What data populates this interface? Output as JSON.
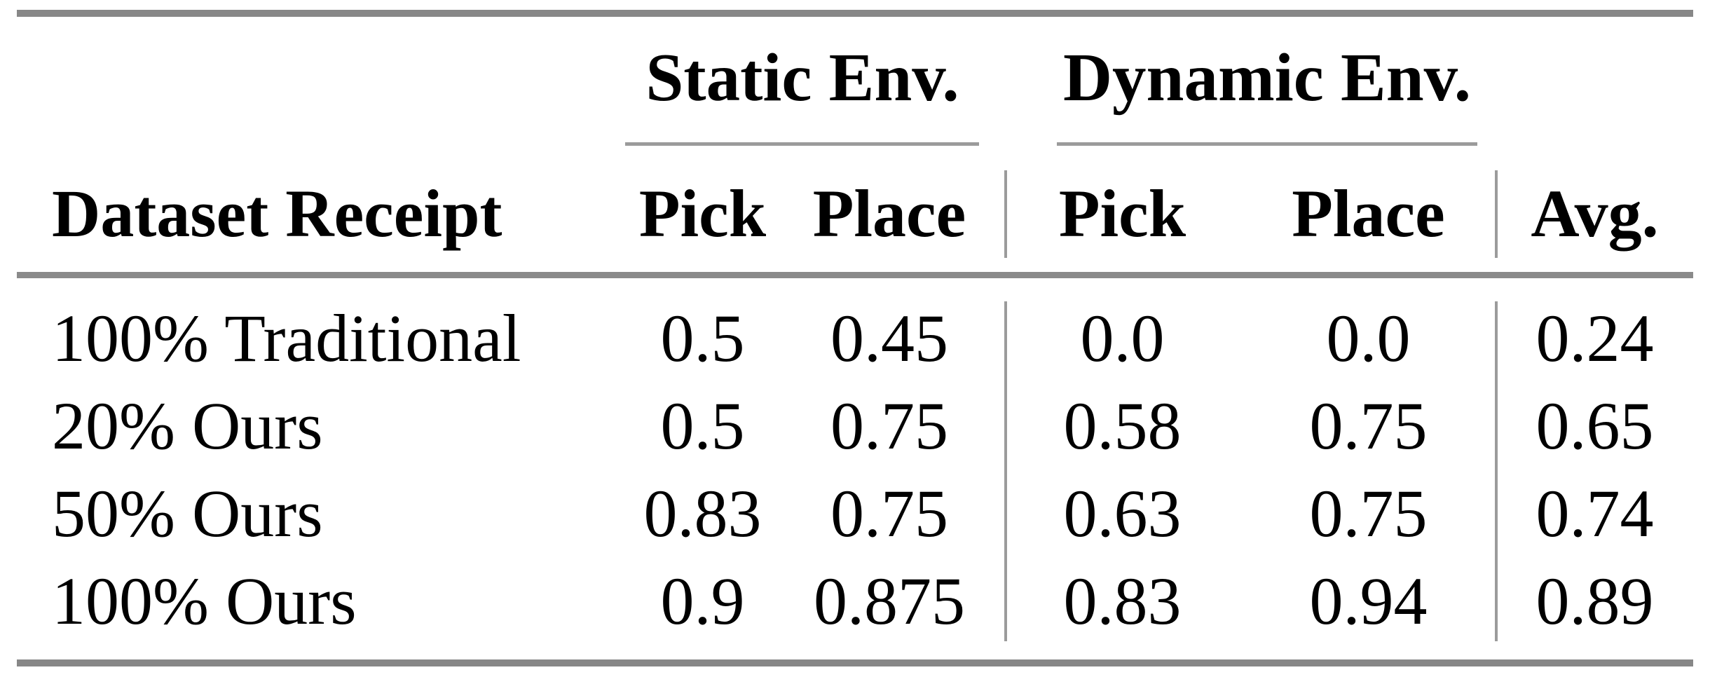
{
  "table": {
    "group_headers": {
      "static": "Static Env.",
      "dynamic": "Dynamic Env."
    },
    "header": {
      "dataset": "Dataset Receipt",
      "static_pick": "Pick",
      "static_place": "Place",
      "dynamic_pick": "Pick",
      "dynamic_place": "Place",
      "avg": "Avg."
    },
    "rows": [
      [
        "100% Traditional",
        "0.5",
        "0.45",
        "0.0",
        "0.0",
        "0.24"
      ],
      [
        "20% Ours",
        "0.5",
        "0.75",
        "0.58",
        "0.75",
        "0.65"
      ],
      [
        "50% Ours",
        "0.83",
        "0.75",
        "0.63",
        "0.75",
        "0.74"
      ],
      [
        "100% Ours",
        "0.9",
        "0.875",
        "0.83",
        "0.94",
        "0.89"
      ]
    ],
    "colors": {
      "rule_heavy": "#878787",
      "rule_light": "#9b9b9b",
      "text": "#000000",
      "background": "#ffffff"
    }
  },
  "chart_data": {
    "type": "table",
    "column_groups": [
      {
        "label": "Static Env.",
        "columns": [
          "Pick",
          "Place"
        ]
      },
      {
        "label": "Dynamic Env.",
        "columns": [
          "Pick",
          "Place"
        ]
      }
    ],
    "columns": [
      "Dataset Receipt",
      "Static Pick",
      "Static Place",
      "Dynamic Pick",
      "Dynamic Place",
      "Avg."
    ],
    "rows": [
      {
        "dataset_receipt": "100% Traditional",
        "static_pick": 0.5,
        "static_place": 0.45,
        "dynamic_pick": 0.0,
        "dynamic_place": 0.0,
        "avg": 0.24
      },
      {
        "dataset_receipt": "20% Ours",
        "static_pick": 0.5,
        "static_place": 0.75,
        "dynamic_pick": 0.58,
        "dynamic_place": 0.75,
        "avg": 0.65
      },
      {
        "dataset_receipt": "50% Ours",
        "static_pick": 0.83,
        "static_place": 0.75,
        "dynamic_pick": 0.63,
        "dynamic_place": 0.75,
        "avg": 0.74
      },
      {
        "dataset_receipt": "100% Ours",
        "static_pick": 0.9,
        "static_place": 0.875,
        "dynamic_pick": 0.83,
        "dynamic_place": 0.94,
        "avg": 0.89
      }
    ]
  }
}
